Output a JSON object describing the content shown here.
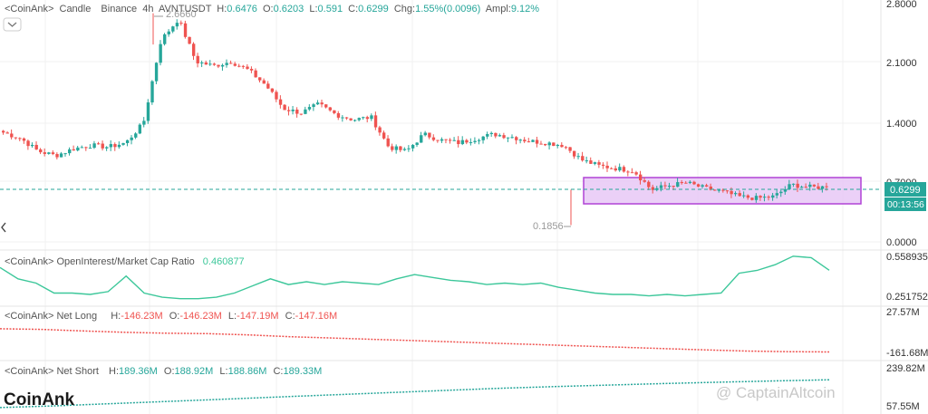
{
  "header": {
    "prefix": "<CoinAnk>",
    "type": "Candle",
    "exchange": "Binance",
    "interval": "4h",
    "symbol": "AVNTUSDT",
    "h_label": "H:",
    "h": "0.6476",
    "o_label": "O:",
    "o": "0.6203",
    "l_label": "L:",
    "l": "0.591",
    "c_label": "C:",
    "c": "0.6299",
    "chg_label": "Chg:",
    "chg": "1.55%(0.0096)",
    "ampl_label": "Ampl:",
    "ampl": "9.12%"
  },
  "price_axis": {
    "ticks": [
      "2.8000",
      "2.1000",
      "1.4000",
      "0.7000",
      "0.0000"
    ],
    "current_price": "0.6299",
    "countdown": "00:13:56"
  },
  "annotations": {
    "peak": "2.6660",
    "low": "0.1856"
  },
  "oi_panel": {
    "title": "<CoinAnk> OpenInterest/Market Cap Ratio",
    "value": "0.460877",
    "axis_top": "0.558935",
    "axis_bottom": "0.251752"
  },
  "net_long_panel": {
    "title": "<CoinAnk> Net Long",
    "h_label": "H:",
    "h": "-146.23M",
    "o_label": "O:",
    "o": "-146.23M",
    "l_label": "L:",
    "l": "-147.19M",
    "c_label": "C:",
    "c": "-147.16M",
    "axis_top": "27.57M",
    "axis_bottom": "-161.68M"
  },
  "net_short_panel": {
    "title": "<CoinAnk> Net Short",
    "h_label": "H:",
    "h": "189.36M",
    "o_label": "O:",
    "o": "188.92M",
    "l_label": "L:",
    "l": "188.86M",
    "c_label": "C:",
    "c": "189.33M",
    "axis_top": "239.82M",
    "axis_bottom": "57.55M"
  },
  "branding": {
    "logo": "CoinAnk",
    "watermark": "@ CaptainAltcoin"
  },
  "colors": {
    "up": "#26a69a",
    "down": "#ef5350",
    "oi_line": "#3cc79a",
    "range_fill": "#e8c8f6",
    "range_border": "#b042d6"
  },
  "chart_data": [
    {
      "type": "candlestick",
      "title": "AVNTUSDT 4h",
      "ylim": [
        0,
        2.8
      ],
      "approx_close_path": [
        1.27,
        1.2,
        1.05,
        1.0,
        1.08,
        1.12,
        1.1,
        1.15,
        1.38,
        2.35,
        2.6,
        2.1,
        2.05,
        2.1,
        2.0,
        1.82,
        1.55,
        1.5,
        1.6,
        1.48,
        1.42,
        1.45,
        1.1,
        1.05,
        1.25,
        1.18,
        1.15,
        1.2,
        1.25,
        1.22,
        1.17,
        1.15,
        1.12,
        0.95,
        0.88,
        0.85,
        0.82,
        0.6,
        0.65,
        0.68,
        0.62,
        0.58,
        0.52,
        0.5,
        0.52,
        0.66,
        0.63,
        0.6299
      ],
      "high_annotation": 2.666,
      "low_annotation": 0.1856,
      "last_close": 0.6299
    },
    {
      "type": "line",
      "name": "OpenInterest/Market Cap Ratio",
      "ylim": [
        0.251752,
        0.558935
      ],
      "y": [
        0.48,
        0.4,
        0.37,
        0.3,
        0.3,
        0.29,
        0.31,
        0.42,
        0.3,
        0.27,
        0.26,
        0.26,
        0.27,
        0.3,
        0.35,
        0.4,
        0.36,
        0.38,
        0.36,
        0.38,
        0.37,
        0.36,
        0.4,
        0.43,
        0.41,
        0.39,
        0.38,
        0.36,
        0.37,
        0.36,
        0.37,
        0.34,
        0.32,
        0.3,
        0.29,
        0.29,
        0.28,
        0.29,
        0.28,
        0.29,
        0.3,
        0.44,
        0.46,
        0.5,
        0.56,
        0.55,
        0.460877
      ]
    },
    {
      "type": "line",
      "name": "Net Long",
      "ylim": [
        -161.68,
        27.57
      ],
      "unit": "M",
      "y": [
        -42,
        -45,
        -52,
        -58,
        -62,
        -64,
        -70,
        -78,
        -84,
        -90,
        -96,
        -102,
        -108,
        -114,
        -120,
        -126,
        -132,
        -138,
        -143,
        -146,
        -147.16
      ]
    },
    {
      "type": "line",
      "name": "Net Short",
      "ylim": [
        57.55,
        239.82
      ],
      "unit": "M",
      "y": [
        62,
        70,
        80,
        90,
        100,
        110,
        120,
        130,
        140,
        150,
        158,
        165,
        172,
        178,
        184,
        189.33
      ]
    }
  ]
}
